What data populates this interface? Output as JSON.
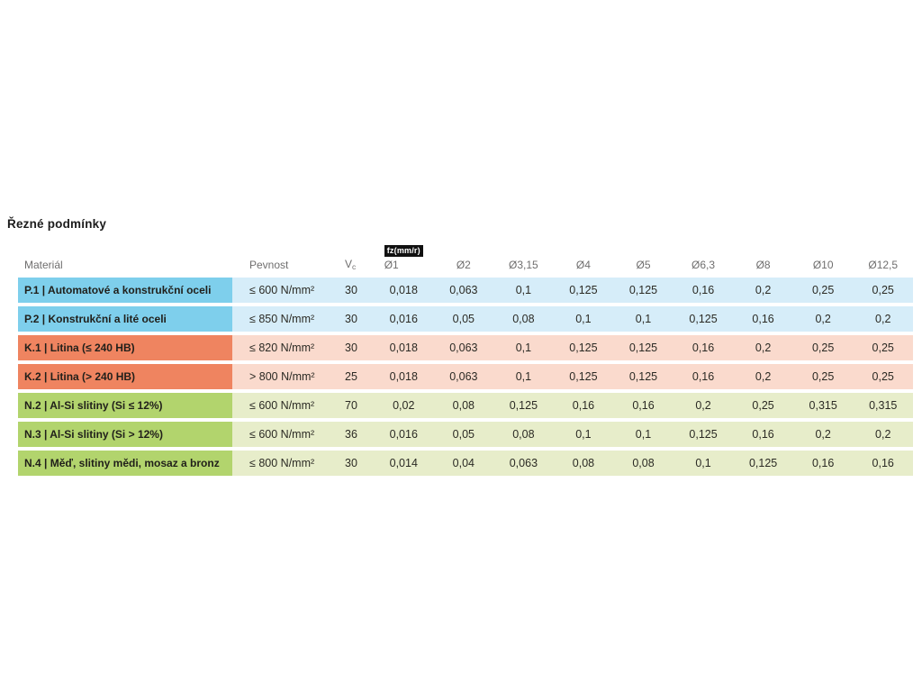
{
  "title": "Řezné podmínky",
  "chart_data": {
    "type": "table",
    "title": "Řezné podmínky",
    "header": {
      "material": "Materiál",
      "strength": "Pevnost",
      "vc": "V",
      "vc_sub": "c",
      "fz_badge": "fz(mm/r)",
      "diameters": [
        "Ø1",
        "Ø2",
        "Ø3,15",
        "Ø4",
        "Ø5",
        "Ø6,3",
        "Ø8",
        "Ø10",
        "Ø12,5"
      ]
    },
    "rows": [
      {
        "group": "P",
        "material": "P.1 | Automatové a konstrukční oceli",
        "strength": "≤ 600 N/mm²",
        "vc": "30",
        "fz": [
          "0,018",
          "0,063",
          "0,1",
          "0,125",
          "0,125",
          "0,16",
          "0,2",
          "0,25",
          "0,25"
        ]
      },
      {
        "group": "P",
        "material": "P.2 | Konstrukční a lité oceli",
        "strength": "≤ 850 N/mm²",
        "vc": "30",
        "fz": [
          "0,016",
          "0,05",
          "0,08",
          "0,1",
          "0,1",
          "0,125",
          "0,16",
          "0,2",
          "0,2"
        ]
      },
      {
        "group": "K",
        "material": "K.1 | Litina (≤ 240 HB)",
        "strength": "≤ 820 N/mm²",
        "vc": "30",
        "fz": [
          "0,018",
          "0,063",
          "0,1",
          "0,125",
          "0,125",
          "0,16",
          "0,2",
          "0,25",
          "0,25"
        ]
      },
      {
        "group": "K",
        "material": "K.2 | Litina (> 240 HB)",
        "strength": "> 800 N/mm²",
        "vc": "25",
        "fz": [
          "0,018",
          "0,063",
          "0,1",
          "0,125",
          "0,125",
          "0,16",
          "0,2",
          "0,25",
          "0,25"
        ]
      },
      {
        "group": "N",
        "material": "N.2 | Al-Si slitiny (Si ≤ 12%)",
        "strength": "≤ 600 N/mm²",
        "vc": "70",
        "fz": [
          "0,02",
          "0,08",
          "0,125",
          "0,16",
          "0,16",
          "0,2",
          "0,25",
          "0,315",
          "0,315"
        ]
      },
      {
        "group": "N",
        "material": "N.3 | Al-Si slitiny (Si > 12%)",
        "strength": "≤ 600 N/mm²",
        "vc": "36",
        "fz": [
          "0,016",
          "0,05",
          "0,08",
          "0,1",
          "0,1",
          "0,125",
          "0,16",
          "0,2",
          "0,2"
        ]
      },
      {
        "group": "N",
        "material": "N.4 | Měď, slitiny mědi, mosaz a bronz",
        "strength": "≤ 800 N/mm²",
        "vc": "30",
        "fz": [
          "0,014",
          "0,04",
          "0,063",
          "0,08",
          "0,08",
          "0,1",
          "0,125",
          "0,16",
          "0,16"
        ]
      }
    ],
    "group_colors": {
      "P": {
        "label_bg": "#7ecfec",
        "row_bg": "#d6edf9"
      },
      "K": {
        "label_bg": "#ef8460",
        "row_bg": "#fadacd"
      },
      "N": {
        "label_bg": "#b2d46d",
        "row_bg": "#e7edca"
      }
    }
  }
}
